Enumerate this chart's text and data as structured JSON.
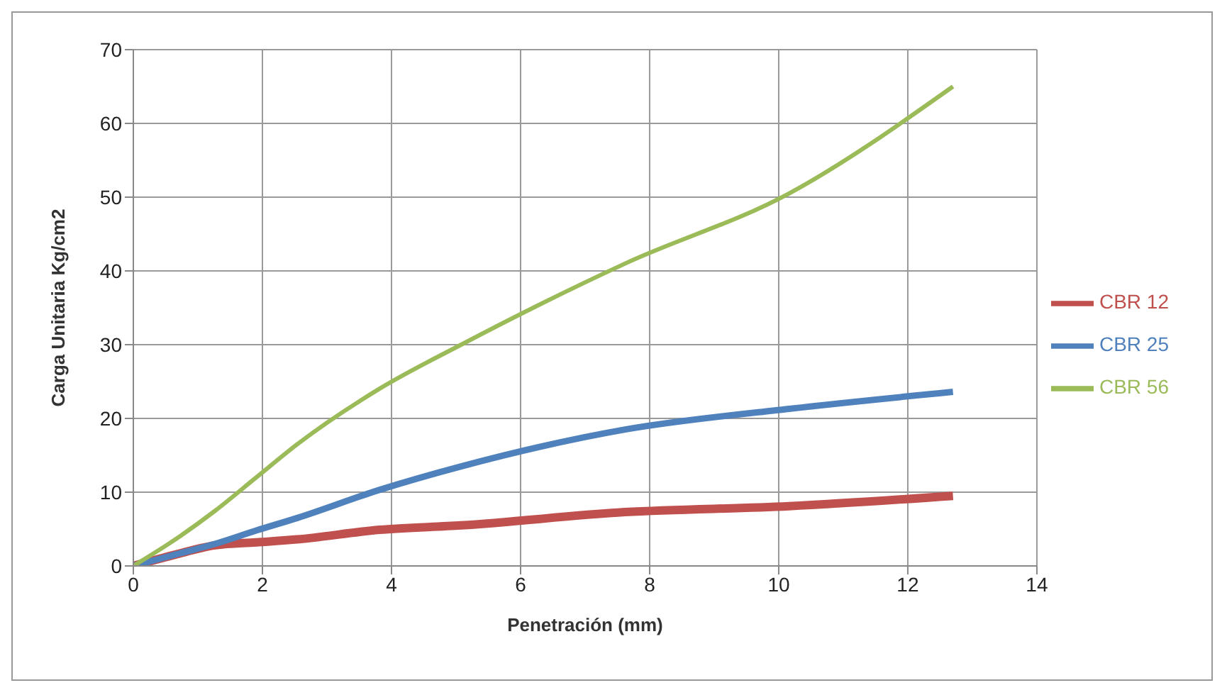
{
  "chart_data": {
    "type": "line",
    "xlabel": "Penetración (mm)",
    "ylabel": "Carga Unitaria Kg/cm2",
    "x": [
      0,
      0.635,
      1.27,
      1.905,
      2.54,
      3.81,
      5.08,
      7.62,
      10.16,
      12.7
    ],
    "series": [
      {
        "name": "CBR 12",
        "color": "#c0504d",
        "values": [
          0,
          1.5,
          2.8,
          3.2,
          3.6,
          4.9,
          5.5,
          7.3,
          8.1,
          9.5
        ]
      },
      {
        "name": "CBR 25",
        "color": "#4f81bd",
        "values": [
          0,
          1.5,
          3,
          4.8,
          6.5,
          10.3,
          13.5,
          18.5,
          21.3,
          23.6
        ]
      },
      {
        "name": "CBR 56",
        "color": "#9bbb59",
        "values": [
          0,
          3.5,
          7.5,
          12,
          16.5,
          24,
          30,
          41,
          50.5,
          65
        ]
      }
    ],
    "xlim": [
      0,
      14
    ],
    "xticks": [
      0,
      2,
      4,
      6,
      8,
      10,
      12,
      14
    ],
    "ylim": [
      0,
      70
    ],
    "yticks": [
      0,
      10,
      20,
      30,
      40,
      50,
      60,
      70
    ],
    "grid": true,
    "legend": "right",
    "marker": "none",
    "line_style": "solid"
  }
}
